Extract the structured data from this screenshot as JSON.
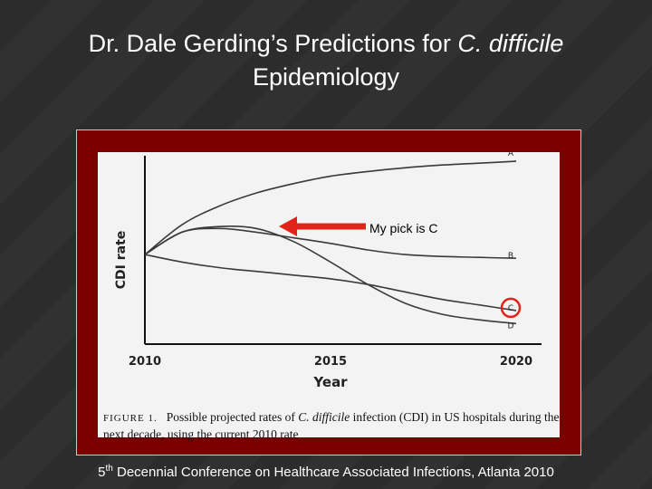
{
  "slide": {
    "title_main": "Dr. Dale Gerding’s Predictions for ",
    "title_italic": "C. difficile",
    "title_line2": "Epidemiology",
    "annotation": "My pick is C",
    "footer_pre": "5",
    "footer_sup": "th",
    "footer_post": " Decennial Conference on Healthcare Associated Infections, Atlanta 2010",
    "colors": {
      "frame": "#7a0000",
      "arrow": "#e2231a",
      "circle": "#e2231a",
      "text": "#ffffff"
    }
  },
  "figure_caption": {
    "label": "FIGURE 1.",
    "text_pre": "Possible projected rates of ",
    "text_italic": "C. difficile",
    "text_post": " infection (CDI) in US hospitals during the next decade, using the current 2010 rate"
  },
  "chart_data": {
    "type": "line",
    "xlabel": "Year",
    "ylabel": "CDI rate",
    "xlim": [
      2010,
      2020
    ],
    "ylim": [
      0,
      100
    ],
    "x_ticks": [
      "2010",
      "2015",
      "2020"
    ],
    "grid": false,
    "series": [
      {
        "name": "A",
        "x": [
          2010,
          2011,
          2012,
          2013,
          2014,
          2015,
          2016,
          2017,
          2018,
          2019,
          2020
        ],
        "values": [
          48,
          64,
          74,
          81,
          86,
          90,
          92.5,
          94.5,
          96,
          97,
          98
        ]
      },
      {
        "name": "B",
        "x": [
          2010,
          2011,
          2012,
          2013,
          2014,
          2015,
          2016,
          2017,
          2018,
          2019,
          2020
        ],
        "values": [
          48,
          60,
          62,
          60,
          57,
          54,
          50.5,
          48,
          47,
          46.5,
          46
        ]
      },
      {
        "name": "C",
        "x": [
          2010,
          2011,
          2012,
          2013,
          2014,
          2015,
          2016,
          2017,
          2018,
          2019,
          2020
        ],
        "values": [
          48,
          44,
          41,
          39,
          37,
          35,
          32,
          28,
          24,
          21,
          18
        ]
      },
      {
        "name": "D",
        "x": [
          2010,
          2011,
          2012,
          2013,
          2014,
          2015,
          2016,
          2017,
          2018,
          2019,
          2020
        ],
        "values": [
          48,
          60,
          63,
          62,
          55,
          44,
          32,
          22,
          16,
          13,
          11
        ]
      }
    ]
  }
}
